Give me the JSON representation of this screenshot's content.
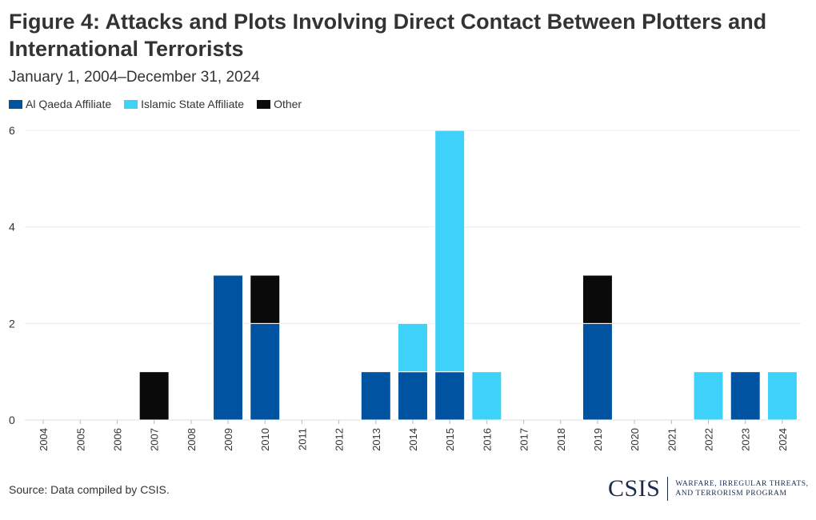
{
  "chart_data": {
    "type": "bar",
    "stacked": true,
    "title": "Figure 4: Attacks and Plots Involving Direct Contact Between Plotters and International Terrorists",
    "subtitle": "January 1, 2004–December 31, 2024",
    "categories": [
      "2004",
      "2005",
      "2006",
      "2007",
      "2008",
      "2009",
      "2010",
      "2011",
      "2012",
      "2013",
      "2014",
      "2015",
      "2016",
      "2017",
      "2018",
      "2019",
      "2020",
      "2021",
      "2022",
      "2023",
      "2024"
    ],
    "series": [
      {
        "name": "Al Qaeda Affiliate",
        "color": "#0053a0",
        "values": [
          0,
          0,
          0,
          0,
          0,
          3,
          2,
          0,
          0,
          1,
          1,
          1,
          0,
          0,
          0,
          2,
          0,
          0,
          0,
          1,
          0
        ]
      },
      {
        "name": "Islamic State Affiliate",
        "color": "#3ed2fb",
        "values": [
          0,
          0,
          0,
          0,
          0,
          0,
          0,
          0,
          0,
          0,
          1,
          5,
          1,
          0,
          0,
          0,
          0,
          0,
          1,
          0,
          1
        ]
      },
      {
        "name": "Other",
        "color": "#0a0a0a",
        "values": [
          0,
          0,
          0,
          1,
          0,
          0,
          1,
          0,
          0,
          0,
          0,
          0,
          0,
          0,
          0,
          1,
          0,
          0,
          0,
          0,
          0
        ]
      }
    ],
    "yticks": [
      0,
      2,
      4,
      6
    ],
    "ylim": [
      0,
      6
    ],
    "xlabel": "",
    "ylabel": "",
    "legend_position": "top-left",
    "grid": true
  },
  "source": "Source: Data compiled by CSIS.",
  "logo": {
    "mark": "CSIS",
    "line1": "WARFARE, IRREGULAR THREATS,",
    "line2": "AND TERRORISM PROGRAM"
  }
}
